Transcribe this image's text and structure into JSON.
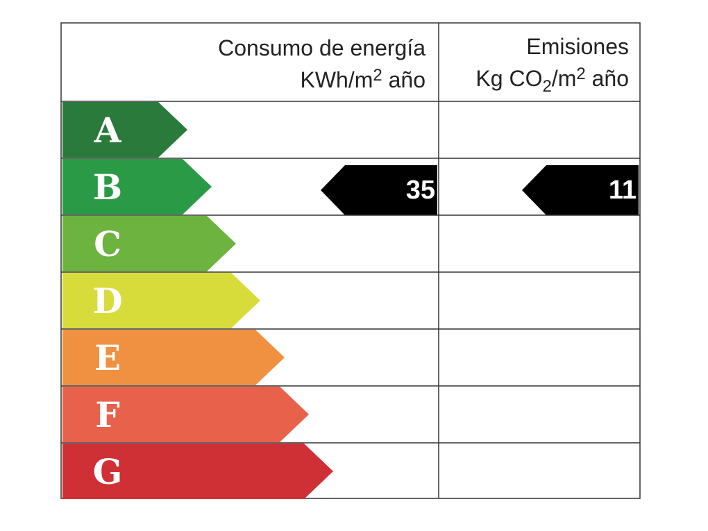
{
  "header": {
    "energy": {
      "line1": "Consumo de energía",
      "line2": [
        "KWh/m",
        "2",
        " año"
      ]
    },
    "emissions": {
      "line1": "Emisiones",
      "line2": [
        "Kg CO",
        "2",
        "/m",
        "2",
        " año"
      ]
    }
  },
  "rows": [
    {
      "letter": "A",
      "color": "#2a7a3b",
      "energy": null,
      "emissions": null
    },
    {
      "letter": "B",
      "color": "#2b9a47",
      "energy": 35,
      "emissions": 11
    },
    {
      "letter": "C",
      "color": "#6db33f",
      "energy": null,
      "emissions": null
    },
    {
      "letter": "D",
      "color": "#d8dc3a",
      "energy": null,
      "emissions": null
    },
    {
      "letter": "E",
      "color": "#ef9140",
      "energy": null,
      "emissions": null
    },
    {
      "letter": "F",
      "color": "#e8614b",
      "energy": null,
      "emissions": null
    },
    {
      "letter": "G",
      "color": "#cf3035",
      "energy": null,
      "emissions": null
    }
  ]
}
